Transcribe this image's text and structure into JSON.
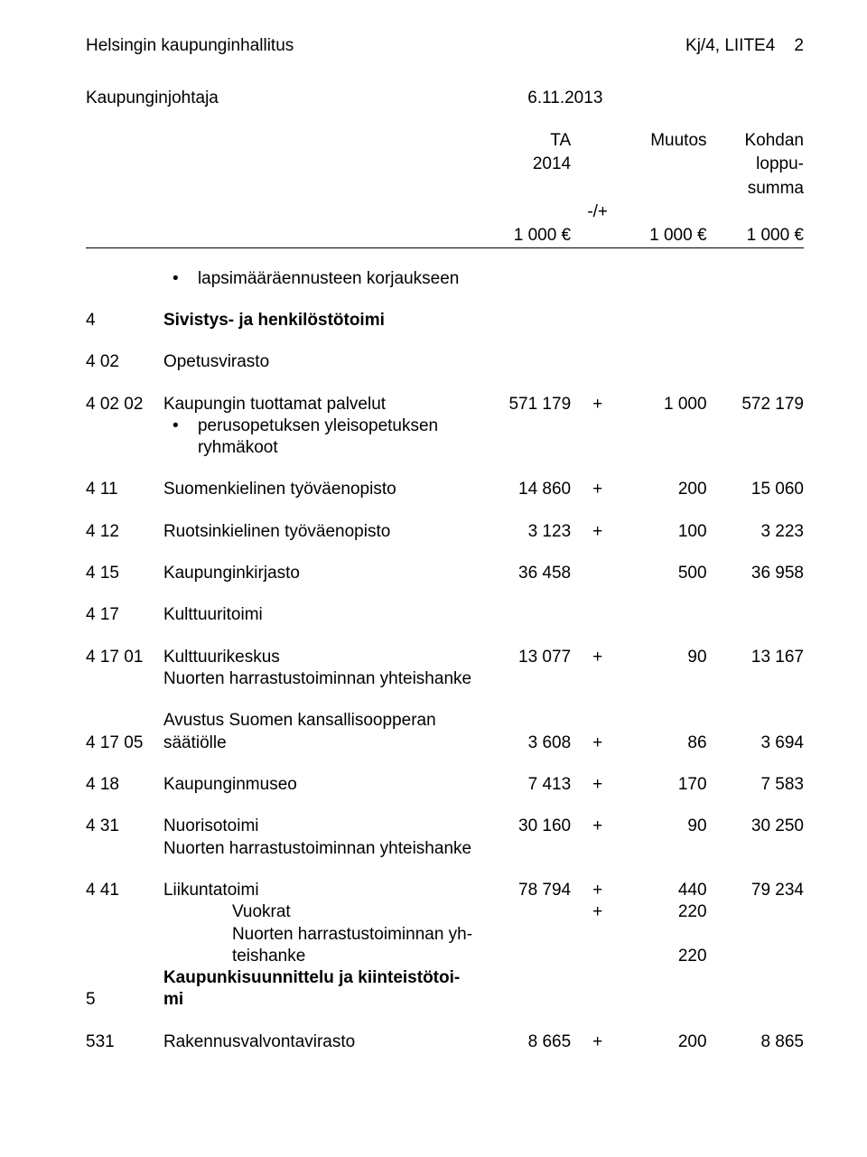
{
  "header": {
    "left": "Helsingin kaupunginhallitus",
    "right_ref": "Kj/4, LIITE4",
    "page_number": "2"
  },
  "subheader": {
    "role": "Kaupunginjohtaja",
    "date": "6.11.2013"
  },
  "columns": {
    "ta_label": "TA",
    "ta_year": "2014",
    "muutos": "Muutos",
    "kohdan": "Kohdan",
    "loppu": "loppu-",
    "summa": "summa",
    "plusminus": "-/+",
    "unit": "1 000 €"
  },
  "rows": {
    "bullet1": "lapsimääräennusteen korjaukseen",
    "s4_code": "4",
    "s4_label": "Sivistys- ja henkilöstötoimi",
    "r402_code": "4 02",
    "r402_label": "Opetusvirasto",
    "r40202_code": "4 02 02",
    "r40202_label": "Kaupungin tuottamat palvelut",
    "r40202_ta": "571 179",
    "r40202_sign": "+",
    "r40202_mut": "1 000",
    "r40202_sum": "572 179",
    "r40202_bullet": "perusopetuksen yleisopetuksen ryhmäkoot",
    "r411_code": "4 11",
    "r411_label": "Suomenkielinen työväenopisto",
    "r411_ta": "14 860",
    "r411_sign": "+",
    "r411_mut": "200",
    "r411_sum": "15 060",
    "r412_code": "4 12",
    "r412_label": "Ruotsinkielinen työväenopisto",
    "r412_ta": "3 123",
    "r412_sign": "+",
    "r412_mut": "100",
    "r412_sum": "3 223",
    "r415_code": "4 15",
    "r415_label": "Kaupunginkirjasto",
    "r415_ta": "36 458",
    "r415_mut": "500",
    "r415_sum": "36 958",
    "r417_code": "4 17",
    "r417_label": "Kulttuuritoimi",
    "r41701_code": "4 17 01",
    "r41701_label": "Kulttuurikeskus",
    "r41701_ta": "13 077",
    "r41701_sign": "+",
    "r41701_mut": "90",
    "r41701_sum": "13 167",
    "r41701_sub": "Nuorten harrastustoiminnan yhteishanke",
    "r41705_code": "4 17 05",
    "r41705_label_l1": "Avustus Suomen kansallisoopperan",
    "r41705_label_l2": "säätiölle",
    "r41705_ta": "3 608",
    "r41705_sign": "+",
    "r41705_mut": "86",
    "r41705_sum": "3 694",
    "r418_code": "4 18",
    "r418_label": "Kaupunginmuseo",
    "r418_ta": "7 413",
    "r418_sign": "+",
    "r418_mut": "170",
    "r418_sum": "7 583",
    "r431_code": "4 31",
    "r431_label": "Nuorisotoimi",
    "r431_ta": "30 160",
    "r431_sign": "+",
    "r431_mut": "90",
    "r431_sum": "30 250",
    "r431_sub": "Nuorten harrastustoiminnan yhteishanke",
    "r441_code": "4 41",
    "r441_label": "Liikuntatoimi",
    "r441_ta": "78 794",
    "r441_sign": "+",
    "r441_mut": "440",
    "r441_sum": "79 234",
    "r441_sub1": "Vuokrat",
    "r441_sub1_sign": "+",
    "r441_sub1_mut": "220",
    "r441_sub2_l1": "Nuorten harrastustoiminnan yh-",
    "r441_sub2_l2": "teishanke",
    "r441_sub2_mut": "220",
    "s5_code": "5",
    "s5_label_l1": "Kaupunkisuunnittelu ja kiinteistötoi-",
    "s5_label_l2": "mi",
    "r531_code": "531",
    "r531_label": "Rakennusvalvontavirasto",
    "r531_ta": "8 665",
    "r531_sign": "+",
    "r531_mut": "200",
    "r531_sum": "8 865"
  }
}
